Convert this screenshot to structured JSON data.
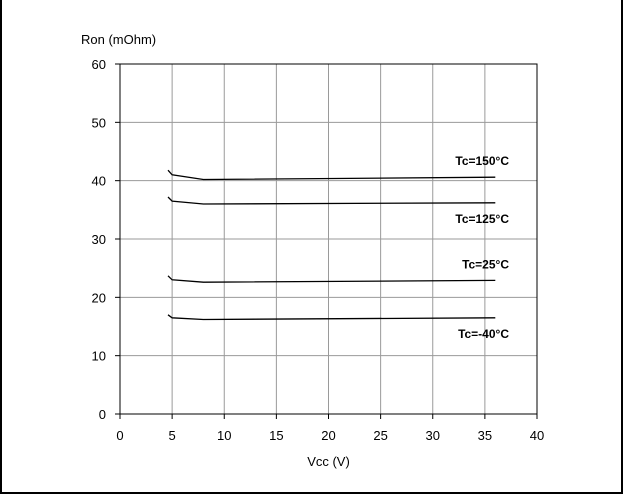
{
  "chart_data": {
    "type": "line",
    "ylabel": "Ron (mOhm)",
    "xlabel": "Vcc (V)",
    "xlim": [
      0,
      40
    ],
    "ylim": [
      0,
      60
    ],
    "xticks": [
      0,
      5,
      10,
      15,
      20,
      25,
      30,
      35,
      40
    ],
    "yticks": [
      0,
      10,
      20,
      30,
      40,
      50,
      60
    ],
    "grid": true,
    "series": [
      {
        "name": "Tc=150°C",
        "points": [
          [
            4.6,
            41.8
          ],
          [
            5,
            41.0
          ],
          [
            8,
            40.2
          ],
          [
            36,
            40.6
          ]
        ]
      },
      {
        "name": "Tc=125°C",
        "points": [
          [
            4.6,
            37.2
          ],
          [
            5,
            36.5
          ],
          [
            8,
            36.0
          ],
          [
            36,
            36.2
          ]
        ]
      },
      {
        "name": "Tc=25°C",
        "points": [
          [
            4.6,
            23.7
          ],
          [
            5,
            23.0
          ],
          [
            8,
            22.6
          ],
          [
            36,
            22.9
          ]
        ]
      },
      {
        "name": "Tc=-40°C",
        "points": [
          [
            4.6,
            17.0
          ],
          [
            5,
            16.5
          ],
          [
            8,
            16.2
          ],
          [
            36,
            16.5
          ]
        ]
      }
    ]
  }
}
